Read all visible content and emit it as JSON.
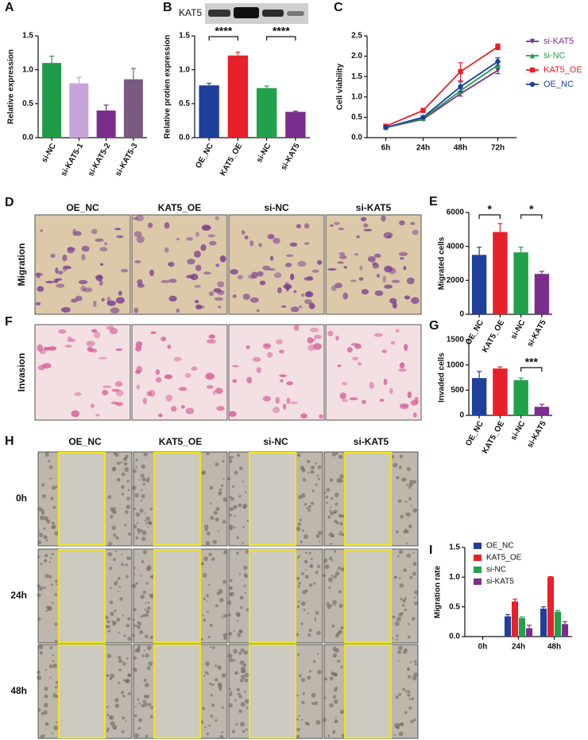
{
  "chart_data": [
    {
      "type": "bar",
      "panel": "A",
      "ylabel": "Relative expression",
      "categories": [
        "si-NC",
        "si-KAT5-1",
        "si-KAT5-2",
        "si-KAT5-3"
      ],
      "values": [
        1.1,
        0.8,
        0.4,
        0.86
      ],
      "errors": [
        0.1,
        0.09,
        0.08,
        0.16
      ],
      "colors": [
        "#1f9a48",
        "#c7a4d6",
        "#7b2d8e",
        "#7a5a80"
      ],
      "ylim": [
        0,
        1.5
      ],
      "yticks": [
        {
          "value": 0,
          "label": "0.0"
        },
        0.5,
        {
          "value": 1,
          "label": "1.0"
        },
        1.5
      ]
    },
    {
      "type": "bar",
      "panel": "B",
      "blot_label": "KAT5",
      "ylabel": "Relative protien expression",
      "categories": [
        "OE_NC",
        "KAT5_OE",
        "si-NC",
        "si-KAT5"
      ],
      "values": [
        0.77,
        1.21,
        0.73,
        0.38
      ],
      "errors": [
        0.03,
        0.05,
        0.03,
        0.01
      ],
      "colors": [
        "#1f3f9a",
        "#e8202a",
        "#22a04a",
        "#7b2d8e"
      ],
      "ylim": [
        0,
        1.5
      ],
      "yticks": [
        {
          "value": 0,
          "label": "0.0"
        },
        0.5,
        {
          "value": 1,
          "label": "1.0"
        },
        1.5
      ],
      "annotations": [
        "****",
        "****"
      ]
    },
    {
      "type": "line",
      "panel": "C",
      "ylabel": "Cell viability",
      "x": [
        "6h",
        "24h",
        "48h",
        "72h"
      ],
      "ylim": [
        0,
        2.5
      ],
      "yticks": [
        {
          "value": 0,
          "label": "0.0"
        },
        0.5,
        {
          "value": 1,
          "label": "1.0"
        },
        1.5,
        {
          "value": 2,
          "label": "2.0"
        },
        2.5
      ],
      "series": [
        {
          "name": "si-KAT5",
          "color": "#7b2d8e",
          "marker": "triangle-down",
          "values": [
            0.25,
            0.45,
            1.08,
            1.65
          ],
          "errors": [
            0.02,
            0.03,
            0.06,
            0.08
          ]
        },
        {
          "name": "si-NC",
          "color": "#22a04a",
          "marker": "triangle",
          "values": [
            0.25,
            0.47,
            1.15,
            1.78
          ],
          "errors": [
            0.02,
            0.03,
            0.07,
            0.07
          ]
        },
        {
          "name": "KAT5_OE",
          "color": "#e8202a",
          "marker": "square",
          "values": [
            0.28,
            0.67,
            1.62,
            2.23
          ],
          "errors": [
            0.02,
            0.04,
            0.22,
            0.07
          ]
        },
        {
          "name": "OE_NC",
          "color": "#1f3f9a",
          "marker": "circle",
          "values": [
            0.25,
            0.5,
            1.25,
            1.87
          ],
          "errors": [
            0.02,
            0.03,
            0.12,
            0.09
          ]
        }
      ]
    },
    {
      "type": "bar",
      "panel": "E",
      "ylabel": "Migrated cells",
      "categories": [
        "OE_NC",
        "KAT5_OE",
        "si-NC",
        "si-KAT5"
      ],
      "values": [
        3500,
        4850,
        3650,
        2380
      ],
      "errors": [
        450,
        500,
        300,
        150
      ],
      "colors": [
        "#1f3f9a",
        "#e8202a",
        "#22a04a",
        "#7b2d8e"
      ],
      "ylim": [
        0,
        6000
      ],
      "yticks": [
        0,
        2000,
        4000,
        6000
      ],
      "annotations": [
        "*",
        "*"
      ]
    },
    {
      "type": "bar",
      "panel": "G",
      "ylabel": "Invaded cells",
      "categories": [
        "OE_NC",
        "KAT5_OE",
        "si-NC",
        "si-KAT5"
      ],
      "values": [
        740,
        930,
        700,
        170
      ],
      "errors": [
        130,
        30,
        40,
        50
      ],
      "colors": [
        "#1f3f9a",
        "#e8202a",
        "#22a04a",
        "#7b2d8e"
      ],
      "ylim": [
        0,
        1500
      ],
      "yticks": [
        0,
        500,
        1000,
        1500
      ],
      "annotations": [
        "***"
      ]
    },
    {
      "type": "grouped-bar",
      "panel": "I",
      "ylabel": "Migration rate",
      "categories": [
        "0h",
        "24h",
        "48h"
      ],
      "ylim": [
        0,
        1.5
      ],
      "yticks": [
        {
          "value": 0,
          "label": "0.0"
        },
        0.5,
        {
          "value": 1,
          "label": "1.0"
        },
        1.5
      ],
      "series": [
        {
          "name": "OE_NC",
          "color": "#1f3f9a",
          "values": [
            0,
            0.34,
            0.47
          ],
          "errors": [
            0,
            0.03,
            0.03
          ]
        },
        {
          "name": "KAT5_OE",
          "color": "#e8202a",
          "values": [
            0,
            0.59,
            1.0
          ],
          "errors": [
            0,
            0.04,
            0.01
          ]
        },
        {
          "name": "si-NC",
          "color": "#22a04a",
          "values": [
            0,
            0.31,
            0.42
          ],
          "errors": [
            0,
            0.02,
            0.02
          ]
        },
        {
          "name": "si-KAT5",
          "color": "#7b2d8e",
          "values": [
            0,
            0.14,
            0.21
          ],
          "errors": [
            0,
            0.05,
            0.04
          ]
        }
      ]
    }
  ],
  "image_panels": [
    {
      "label": "D",
      "columns": [
        "OE_NC",
        "KAT5_OE",
        "si-NC",
        "si-KAT5"
      ],
      "rows": [
        "Migration"
      ]
    },
    {
      "label": "F",
      "rows": [
        "Invasion"
      ]
    },
    {
      "label": "H",
      "columns": [
        "OE_NC",
        "KAT5_OE",
        "si-NC",
        "si-KAT5"
      ],
      "rows": [
        "0h",
        "24h",
        "48h"
      ]
    }
  ]
}
